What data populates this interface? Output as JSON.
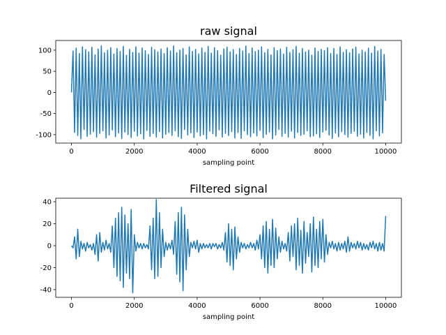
{
  "chart_data": [
    {
      "type": "line",
      "title": "raw signal",
      "xlabel": "sampling point",
      "color": "#1f77b4",
      "xlim": [
        -500,
        10500
      ],
      "xticks": [
        0,
        2000,
        4000,
        6000,
        8000,
        10000
      ],
      "ylim": [
        -120,
        123
      ],
      "yticks": [
        -100,
        -50,
        0,
        50,
        100
      ],
      "x": [
        0,
        50,
        100,
        150,
        200,
        250,
        300,
        350,
        400,
        450,
        500,
        550,
        600,
        650,
        700,
        750,
        800,
        850,
        900,
        950,
        1000,
        1050,
        1100,
        1150,
        1200,
        1250,
        1300,
        1350,
        1400,
        1450,
        1500,
        1550,
        1600,
        1650,
        1700,
        1750,
        1800,
        1850,
        1900,
        1950,
        2000,
        2050,
        2100,
        2150,
        2200,
        2250,
        2300,
        2350,
        2400,
        2450,
        2500,
        2550,
        2600,
        2650,
        2700,
        2750,
        2800,
        2850,
        2900,
        2950,
        3000,
        3050,
        3100,
        3150,
        3200,
        3250,
        3300,
        3350,
        3400,
        3450,
        3500,
        3550,
        3600,
        3650,
        3700,
        3750,
        3800,
        3850,
        3900,
        3950,
        4000,
        4050,
        4100,
        4150,
        4200,
        4250,
        4300,
        4350,
        4400,
        4450,
        4500,
        4550,
        4600,
        4650,
        4700,
        4750,
        4800,
        4850,
        4900,
        4950,
        5000,
        5050,
        5100,
        5150,
        5200,
        5250,
        5300,
        5350,
        5400,
        5450,
        5500,
        5550,
        5600,
        5650,
        5700,
        5750,
        5800,
        5850,
        5900,
        5950,
        6000,
        6050,
        6100,
        6150,
        6200,
        6250,
        6300,
        6350,
        6400,
        6450,
        6500,
        6550,
        6600,
        6650,
        6700,
        6750,
        6800,
        6850,
        6900,
        6950,
        7000,
        7050,
        7100,
        7150,
        7200,
        7250,
        7300,
        7350,
        7400,
        7450,
        7500,
        7550,
        7600,
        7650,
        7700,
        7750,
        7800,
        7850,
        7900,
        7950,
        8000,
        8050,
        8100,
        8150,
        8200,
        8250,
        8300,
        8350,
        8400,
        8450,
        8500,
        8550,
        8600,
        8650,
        8700,
        8750,
        8800,
        8850,
        8900,
        8950,
        9000,
        9050,
        9100,
        9150,
        9200,
        9250,
        9300,
        9350,
        9400,
        9450,
        9500,
        9550,
        9600,
        9650,
        9700,
        9750,
        9800,
        9850,
        9900,
        9950,
        10000
      ],
      "values": [
        0,
        98,
        -95,
        105,
        -102,
        92,
        -110,
        108,
        -88,
        101,
        -104,
        96,
        -99,
        107,
        -93,
        89,
        -106,
        103,
        -97,
        110,
        -91,
        94,
        -108,
        100,
        -101,
        106,
        -89,
        91,
        -105,
        104,
        -96,
        97,
        -109,
        109,
        -94,
        88,
        -100,
        102,
        -107,
        95,
        -92,
        108,
        -103,
        93,
        -98,
        105,
        -110,
        99,
        -90,
        90,
        -104,
        107,
        -97,
        101,
        -106,
        96,
        -93,
        103,
        -108,
        92,
        -99,
        106,
        -95,
        98,
        -102,
        110,
        -91,
        94,
        -105,
        100,
        -109,
        104,
        -88,
        89,
        -101,
        108,
        -96,
        97,
        -107,
        102,
        -94,
        91,
        -103,
        105,
        -100,
        95,
        -110,
        109,
        -92,
        93,
        -98,
        106,
        -104,
        99,
        -89,
        88,
        -106,
        103,
        -97,
        107,
        -102,
        96,
        -93,
        101,
        -108,
        90,
        -95,
        104,
        -109,
        98,
        -91,
        110,
        -100,
        92,
        -105,
        105,
        -96,
        97,
        -103,
        100,
        -90,
        108,
        -107,
        94,
        -99,
        102,
        -94,
        89,
        -110,
        106,
        -101,
        99,
        -88,
        103,
        -104,
        91,
        -97,
        107,
        -106,
        95,
        -92,
        101,
        -108,
        109,
        -95,
        93,
        -102,
        104,
        -99,
        96,
        -91,
        100,
        -105,
        88,
        -103,
        105,
        -98,
        97,
        -107,
        102,
        -94,
        99,
        -90,
        106,
        -101,
        92,
        -109,
        104,
        -96,
        90,
        -105,
        108,
        -93,
        95,
        -100,
        101,
        -106,
        94,
        -97,
        103,
        -92,
        107,
        -104,
        91,
        -99,
        100,
        -108,
        96,
        -95,
        105,
        -102,
        93,
        -110,
        109,
        -91,
        98,
        -103,
        102,
        -96,
        90,
        -20
      ]
    },
    {
      "type": "line",
      "title": "Filtered signal",
      "xlabel": "sampling point",
      "color": "#1f77b4",
      "xlim": [
        -500,
        10500
      ],
      "xticks": [
        0,
        2000,
        4000,
        6000,
        8000,
        10000
      ],
      "ylim": [
        -47,
        43.2
      ],
      "yticks": [
        -40,
        -20,
        0,
        20,
        40
      ],
      "x": [
        0,
        50,
        100,
        150,
        200,
        250,
        300,
        350,
        400,
        450,
        500,
        550,
        600,
        650,
        700,
        750,
        800,
        850,
        900,
        950,
        1000,
        1050,
        1100,
        1150,
        1200,
        1250,
        1300,
        1350,
        1400,
        1450,
        1500,
        1550,
        1600,
        1650,
        1700,
        1750,
        1800,
        1850,
        1900,
        1950,
        2000,
        2050,
        2100,
        2150,
        2200,
        2250,
        2300,
        2350,
        2400,
        2450,
        2500,
        2550,
        2600,
        2650,
        2700,
        2750,
        2800,
        2850,
        2900,
        2950,
        3000,
        3050,
        3100,
        3150,
        3200,
        3250,
        3300,
        3350,
        3400,
        3450,
        3500,
        3550,
        3600,
        3650,
        3700,
        3750,
        3800,
        3850,
        3900,
        3950,
        4000,
        4050,
        4100,
        4150,
        4200,
        4250,
        4300,
        4350,
        4400,
        4450,
        4500,
        4550,
        4600,
        4650,
        4700,
        4750,
        4800,
        4850,
        4900,
        4950,
        5000,
        5050,
        5100,
        5150,
        5200,
        5250,
        5300,
        5350,
        5400,
        5450,
        5500,
        5550,
        5600,
        5650,
        5700,
        5750,
        5800,
        5850,
        5900,
        5950,
        6000,
        6050,
        6100,
        6150,
        6200,
        6250,
        6300,
        6350,
        6400,
        6450,
        6500,
        6550,
        6600,
        6650,
        6700,
        6750,
        6800,
        6850,
        6900,
        6950,
        7000,
        7050,
        7100,
        7150,
        7200,
        7250,
        7300,
        7350,
        7400,
        7450,
        7500,
        7550,
        7600,
        7650,
        7700,
        7750,
        7800,
        7850,
        7900,
        7950,
        8000,
        8050,
        8100,
        8150,
        8200,
        8250,
        8300,
        8350,
        8400,
        8450,
        8500,
        8550,
        8600,
        8650,
        8700,
        8750,
        8800,
        8850,
        8900,
        8950,
        9000,
        9050,
        9100,
        9150,
        9200,
        9250,
        9300,
        9350,
        9400,
        9450,
        9500,
        9550,
        9600,
        9650,
        9700,
        9750,
        9800,
        9850,
        9900,
        9950,
        10000
      ],
      "values": [
        0,
        -2,
        8,
        -12,
        15,
        -10,
        4,
        -3,
        2,
        -5,
        3,
        -2,
        1,
        -4,
        2,
        -8,
        10,
        -14,
        12,
        -6,
        3,
        -4,
        5,
        -3,
        2,
        -6,
        18,
        -20,
        25,
        -28,
        30,
        -32,
        35,
        -38,
        28,
        -25,
        20,
        -30,
        33,
        -43,
        10,
        -5,
        3,
        -2,
        2,
        -3,
        2,
        -2,
        1,
        -3,
        18,
        -22,
        25,
        -30,
        42,
        -28,
        30,
        -20,
        15,
        -10,
        3,
        -4,
        2,
        -3,
        5,
        -8,
        22,
        -26,
        30,
        -33,
        35,
        -41,
        28,
        -22,
        15,
        -10,
        3,
        -2,
        4,
        -3,
        5,
        -6,
        2,
        -3,
        2,
        -2,
        1,
        -2,
        2,
        -3,
        2,
        -1,
        2,
        -3,
        1,
        -2,
        3,
        -4,
        12,
        -15,
        20,
        -18,
        15,
        -22,
        17,
        -12,
        8,
        -6,
        3,
        -2,
        2,
        -3,
        1,
        -2,
        3,
        -2,
        2,
        -4,
        5,
        -3,
        10,
        -12,
        18,
        -20,
        22,
        -25,
        15,
        -18,
        24,
        -20,
        16,
        -12,
        8,
        -6,
        4,
        -3,
        2,
        -5,
        12,
        -14,
        18,
        -10,
        20,
        -22,
        25,
        -18,
        14,
        -25,
        22,
        -16,
        12,
        -10,
        20,
        -24,
        26,
        -18,
        15,
        -20,
        22,
        -12,
        24,
        -15,
        10,
        -8,
        3,
        -2,
        4,
        -3,
        2,
        -5,
        3,
        -4,
        2,
        -3,
        4,
        -6,
        8,
        -5,
        3,
        -2,
        2,
        -3,
        4,
        -2,
        3,
        -4,
        2,
        -3,
        1,
        -4,
        3,
        -2,
        4,
        -3,
        2,
        -5,
        3,
        -4,
        2,
        -5,
        27
      ]
    }
  ]
}
